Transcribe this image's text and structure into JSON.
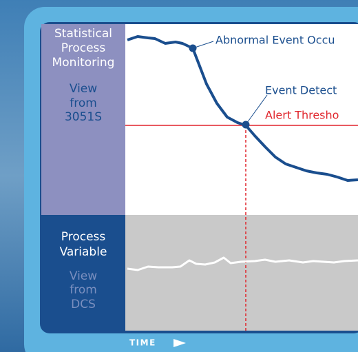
{
  "left_panel": {
    "top": {
      "title": [
        "Statistical",
        "Process",
        "Monitoring"
      ],
      "subtitle": [
        "View",
        "from",
        "3051S"
      ]
    },
    "bottom": {
      "title": [
        "Process",
        "Variable"
      ],
      "subtitle": [
        "View",
        "from",
        "DCS"
      ]
    }
  },
  "annotations": {
    "event_occurs": "Abnormal Event Occu",
    "event_detected": "Event Detect",
    "alert_threshold": "Alert Thresho"
  },
  "x_axis_label": "TIME"
}
